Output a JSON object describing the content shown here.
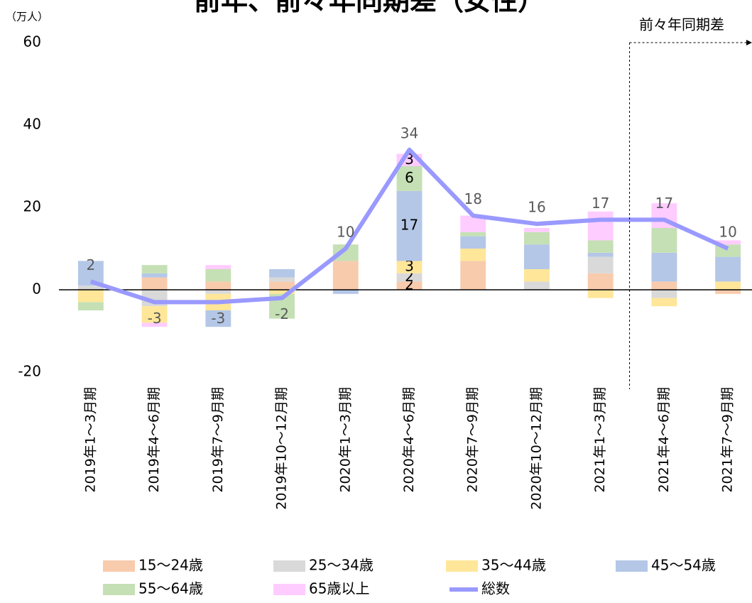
{
  "chart_data": {
    "type": "bar",
    "stacked": true,
    "title": "前年、前々年同期差（女性）",
    "unit_label": "（万人）",
    "annotation": "前々年同期差",
    "categories": [
      "2019年1～3月期",
      "2019年4～6月期",
      "2019年7～9月期",
      "2019年10～12月期",
      "2020年1～3月期",
      "2020年4～6月期",
      "2020年7～9月期",
      "2020年10～12月期",
      "2021年1～3月期",
      "2021年4～6月期",
      "2021年7～9月期"
    ],
    "segment_labels_index": 5,
    "series": [
      {
        "name": "15～24歳",
        "color": "#f8cbad",
        "values": [
          0,
          3,
          2,
          2,
          7,
          2,
          7,
          0,
          4,
          2,
          -1
        ]
      },
      {
        "name": "25～34歳",
        "color": "#d9d9d9",
        "values": [
          1,
          -4,
          -1,
          1,
          0,
          2,
          0,
          2,
          4,
          -2,
          0
        ]
      },
      {
        "name": "35～44歳",
        "color": "#ffe699",
        "values": [
          -3,
          -4,
          -4,
          -1,
          0,
          3,
          3,
          3,
          -2,
          -2,
          2
        ]
      },
      {
        "name": "45～54歳",
        "color": "#b4c7e7",
        "values": [
          6,
          1,
          -4,
          2,
          -1,
          17,
          3,
          6,
          1,
          7,
          6
        ]
      },
      {
        "name": "55～64歳",
        "color": "#c5e0b4",
        "values": [
          -2,
          2,
          3,
          -6,
          4,
          6,
          1,
          3,
          3,
          6,
          3
        ]
      },
      {
        "name": "65歳以上",
        "color": "#ffccff",
        "values": [
          0,
          -1,
          1,
          0,
          0,
          3,
          4,
          1,
          7,
          6,
          1
        ]
      },
      {
        "name": "総数",
        "type": "line",
        "color": "#9999ff",
        "values": [
          2,
          -3,
          -3,
          -2,
          10,
          34,
          18,
          16,
          17,
          17,
          10
        ]
      }
    ],
    "ylim": [
      -20,
      60
    ],
    "yticks": [
      -20,
      0,
      20,
      40,
      60
    ],
    "grid": false
  }
}
